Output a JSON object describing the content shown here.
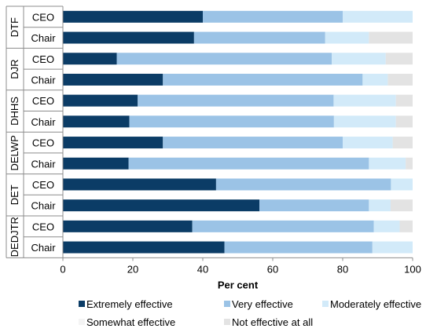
{
  "chart_data": {
    "type": "bar",
    "orientation": "horizontal",
    "stacked": true,
    "xlabel": "Per cent",
    "xlim": [
      0,
      100
    ],
    "xticks": [
      0,
      20,
      40,
      60,
      80,
      100
    ],
    "groups": [
      {
        "name": "DTF",
        "rows": [
          "CEO",
          "Chair"
        ]
      },
      {
        "name": "DJR",
        "rows": [
          "CEO",
          "Chair"
        ]
      },
      {
        "name": "DHHS",
        "rows": [
          "CEO",
          "Chair"
        ]
      },
      {
        "name": "DELWP",
        "rows": [
          "CEO",
          "Chair"
        ]
      },
      {
        "name": "DET",
        "rows": [
          "CEO",
          "Chair"
        ]
      },
      {
        "name": "DEDJTR",
        "rows": [
          "CEO",
          "Chair"
        ]
      }
    ],
    "series": [
      {
        "name": "Extremely effective",
        "color": "#0b3c66",
        "values": [
          40,
          37.5,
          15.4,
          28.6,
          21.4,
          19,
          28.6,
          18.8,
          43.8,
          56.2,
          37,
          46.2
        ]
      },
      {
        "name": "Very effective",
        "color": "#9bc3e6",
        "values": [
          40,
          37.5,
          61.5,
          57.1,
          56,
          58.5,
          51.4,
          68.7,
          50,
          31.3,
          51.9,
          42.3
        ]
      },
      {
        "name": "Moderately effective",
        "color": "#d2eaf9",
        "values": [
          20,
          12.5,
          15.4,
          7.2,
          17.8,
          17.7,
          14.3,
          10.5,
          6.2,
          6.2,
          7.4,
          11.5
        ]
      },
      {
        "name": "Somewhat effective",
        "color": "#f4f4f4",
        "values": [
          0,
          0,
          0,
          0,
          0,
          0,
          0,
          0,
          0,
          0,
          0,
          0
        ]
      },
      {
        "name": "Not effective at all",
        "color": "#e3e3e3",
        "values": [
          0,
          12.5,
          7.7,
          7.1,
          4.8,
          4.8,
          5.7,
          2,
          0,
          6.3,
          3.7,
          0
        ]
      }
    ],
    "legend_position": "bottom",
    "grid": false
  }
}
